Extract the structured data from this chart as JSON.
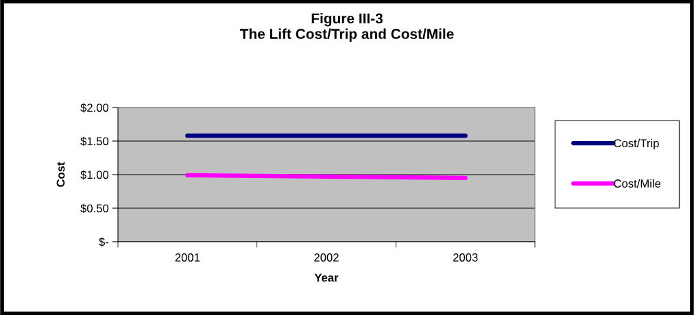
{
  "chart_data": {
    "type": "line",
    "title": "Figure III-3\nThe Lift Cost/Trip and Cost/Mile",
    "xlabel": "Year",
    "ylabel": "Cost",
    "categories": [
      "2001",
      "2002",
      "2003"
    ],
    "series": [
      {
        "name": "Cost/Trip",
        "color": "#000080",
        "values": [
          1.58,
          1.58,
          1.58
        ]
      },
      {
        "name": "Cost/Mile",
        "color": "#ff00ff",
        "values": [
          0.99,
          0.97,
          0.95
        ]
      }
    ],
    "ylim": [
      0,
      2
    ],
    "yticks": [
      {
        "value": 0,
        "label": "$-"
      },
      {
        "value": 0.5,
        "label": "$0.50"
      },
      {
        "value": 1,
        "label": "$1.00"
      },
      {
        "value": 1.5,
        "label": "$1.50"
      },
      {
        "value": 2,
        "label": "$2.00"
      }
    ],
    "grid": "y",
    "legend": "right",
    "marker": "none",
    "line_style": "solid"
  }
}
